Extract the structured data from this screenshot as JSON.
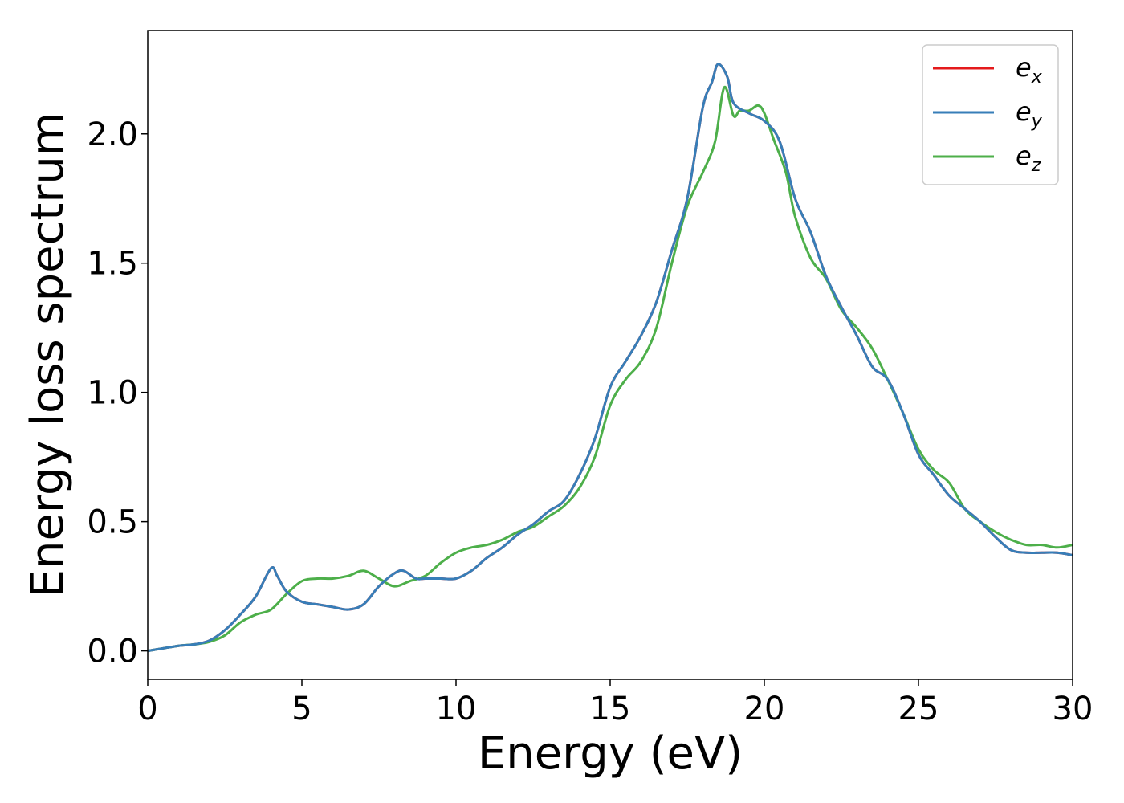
{
  "chart_data": {
    "type": "line",
    "title": "",
    "xlabel": "Energy (eV)",
    "ylabel": "Energy loss spectrum",
    "xlim": [
      0,
      30
    ],
    "ylim": [
      -0.11,
      2.4
    ],
    "xticks": [
      0,
      5,
      10,
      15,
      20,
      25,
      30
    ],
    "xtick_labels": [
      "0",
      "5",
      "10",
      "15",
      "20",
      "25",
      "30"
    ],
    "yticks": [
      0.0,
      0.5,
      1.0,
      1.5,
      2.0
    ],
    "ytick_labels": [
      "0.0",
      "0.5",
      "1.0",
      "1.5",
      "2.0"
    ],
    "grid": false,
    "legend_position": "top-right",
    "series": [
      {
        "name": "e_x",
        "label_base": "e",
        "label_sub": "x",
        "color": "#e41a1c",
        "x": [
          0,
          0.5,
          1,
          1.5,
          2,
          2.5,
          3,
          3.5,
          4,
          4.2,
          4.5,
          5,
          5.5,
          6,
          6.5,
          7,
          7.5,
          8,
          8.3,
          8.7,
          9,
          9.5,
          10,
          10.5,
          11,
          11.5,
          12,
          12.5,
          13,
          13.5,
          14,
          14.5,
          15,
          15.5,
          16,
          16.5,
          17,
          17.5,
          18,
          18.3,
          18.5,
          18.8,
          19,
          19.5,
          20,
          20.5,
          21,
          21.5,
          22,
          22.5,
          23,
          23.5,
          24,
          24.5,
          25,
          25.5,
          26,
          26.5,
          27,
          27.5,
          28,
          28.5,
          29,
          29.5,
          30
        ],
        "y": [
          0.0,
          0.01,
          0.02,
          0.025,
          0.04,
          0.08,
          0.14,
          0.21,
          0.32,
          0.29,
          0.23,
          0.19,
          0.18,
          0.17,
          0.16,
          0.18,
          0.25,
          0.3,
          0.31,
          0.28,
          0.28,
          0.28,
          0.28,
          0.31,
          0.36,
          0.4,
          0.45,
          0.49,
          0.54,
          0.58,
          0.68,
          0.82,
          1.02,
          1.12,
          1.22,
          1.35,
          1.55,
          1.75,
          2.1,
          2.2,
          2.27,
          2.22,
          2.12,
          2.08,
          2.05,
          1.97,
          1.75,
          1.62,
          1.45,
          1.33,
          1.22,
          1.1,
          1.05,
          0.92,
          0.76,
          0.68,
          0.6,
          0.55,
          0.5,
          0.44,
          0.39,
          0.38,
          0.38,
          0.38,
          0.37
        ]
      },
      {
        "name": "e_y",
        "label_base": "e",
        "label_sub": "y",
        "color": "#377eb8",
        "x": [
          0,
          0.5,
          1,
          1.5,
          2,
          2.5,
          3,
          3.5,
          4,
          4.2,
          4.5,
          5,
          5.5,
          6,
          6.5,
          7,
          7.5,
          8,
          8.3,
          8.7,
          9,
          9.5,
          10,
          10.5,
          11,
          11.5,
          12,
          12.5,
          13,
          13.5,
          14,
          14.5,
          15,
          15.5,
          16,
          16.5,
          17,
          17.5,
          18,
          18.3,
          18.5,
          18.8,
          19,
          19.5,
          20,
          20.5,
          21,
          21.5,
          22,
          22.5,
          23,
          23.5,
          24,
          24.5,
          25,
          25.5,
          26,
          26.5,
          27,
          27.5,
          28,
          28.5,
          29,
          29.5,
          30
        ],
        "y": [
          0.0,
          0.01,
          0.02,
          0.025,
          0.04,
          0.08,
          0.14,
          0.21,
          0.32,
          0.29,
          0.23,
          0.19,
          0.18,
          0.17,
          0.16,
          0.18,
          0.25,
          0.3,
          0.31,
          0.28,
          0.28,
          0.28,
          0.28,
          0.31,
          0.36,
          0.4,
          0.45,
          0.49,
          0.54,
          0.58,
          0.68,
          0.82,
          1.02,
          1.12,
          1.22,
          1.35,
          1.55,
          1.75,
          2.1,
          2.2,
          2.27,
          2.22,
          2.12,
          2.08,
          2.05,
          1.97,
          1.75,
          1.62,
          1.45,
          1.33,
          1.22,
          1.1,
          1.05,
          0.92,
          0.76,
          0.68,
          0.6,
          0.55,
          0.5,
          0.44,
          0.39,
          0.38,
          0.38,
          0.38,
          0.37
        ]
      },
      {
        "name": "e_z",
        "label_base": "e",
        "label_sub": "z",
        "color": "#4daf4a",
        "x": [
          0,
          0.5,
          1,
          1.5,
          2,
          2.5,
          3,
          3.5,
          4,
          4.5,
          5,
          5.5,
          6,
          6.5,
          7,
          7.5,
          8,
          8.5,
          9,
          9.5,
          10,
          10.5,
          11,
          11.5,
          12,
          12.5,
          13,
          13.5,
          14,
          14.5,
          15,
          15.5,
          16,
          16.5,
          17,
          17.5,
          18,
          18.4,
          18.7,
          19,
          19.2,
          19.5,
          19.8,
          20,
          20.3,
          20.7,
          21,
          21.5,
          22,
          22.5,
          23,
          23.5,
          24,
          24.5,
          25,
          25.5,
          26,
          26.5,
          27,
          27.5,
          28,
          28.5,
          29,
          29.5,
          30
        ],
        "y": [
          0.0,
          0.01,
          0.02,
          0.025,
          0.035,
          0.06,
          0.11,
          0.14,
          0.16,
          0.22,
          0.27,
          0.28,
          0.28,
          0.29,
          0.31,
          0.28,
          0.25,
          0.27,
          0.29,
          0.34,
          0.38,
          0.4,
          0.41,
          0.43,
          0.46,
          0.48,
          0.52,
          0.56,
          0.63,
          0.75,
          0.95,
          1.05,
          1.12,
          1.25,
          1.5,
          1.72,
          1.85,
          1.97,
          2.18,
          2.07,
          2.09,
          2.09,
          2.11,
          2.08,
          1.98,
          1.85,
          1.68,
          1.52,
          1.44,
          1.32,
          1.25,
          1.17,
          1.05,
          0.92,
          0.78,
          0.7,
          0.65,
          0.55,
          0.5,
          0.46,
          0.43,
          0.41,
          0.41,
          0.4,
          0.41
        ]
      }
    ]
  }
}
